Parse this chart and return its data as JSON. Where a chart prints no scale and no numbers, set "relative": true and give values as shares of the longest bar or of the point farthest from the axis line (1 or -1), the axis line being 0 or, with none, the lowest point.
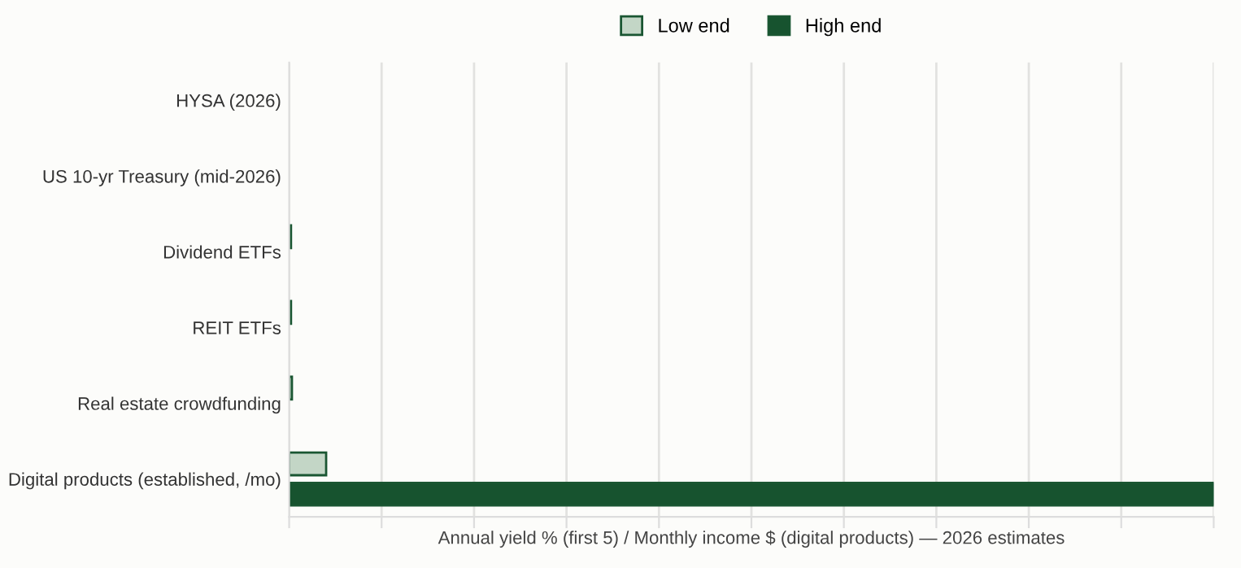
{
  "chart_data": {
    "type": "bar",
    "orientation": "horizontal",
    "relative": true,
    "xlabel": "Annual yield % (first 5) / Monthly income $ (digital products) — 2026 estimates",
    "categories": [
      "HYSA (2026)",
      "US 10-yr Treasury (mid-2026)",
      "Dividend ETFs",
      "REIT ETFs",
      "Real estate crowdfunding",
      "Digital products (established, /mo)"
    ],
    "series": [
      {
        "name": "Low end",
        "color": "#c3d6c6",
        "values": [
          null,
          null,
          0.002,
          0.002,
          0.003,
          0.04
        ]
      },
      {
        "name": "High end",
        "color": "#17532f",
        "values": [
          null,
          null,
          null,
          null,
          null,
          1
        ]
      }
    ],
    "grid": "x",
    "legend": "top"
  }
}
